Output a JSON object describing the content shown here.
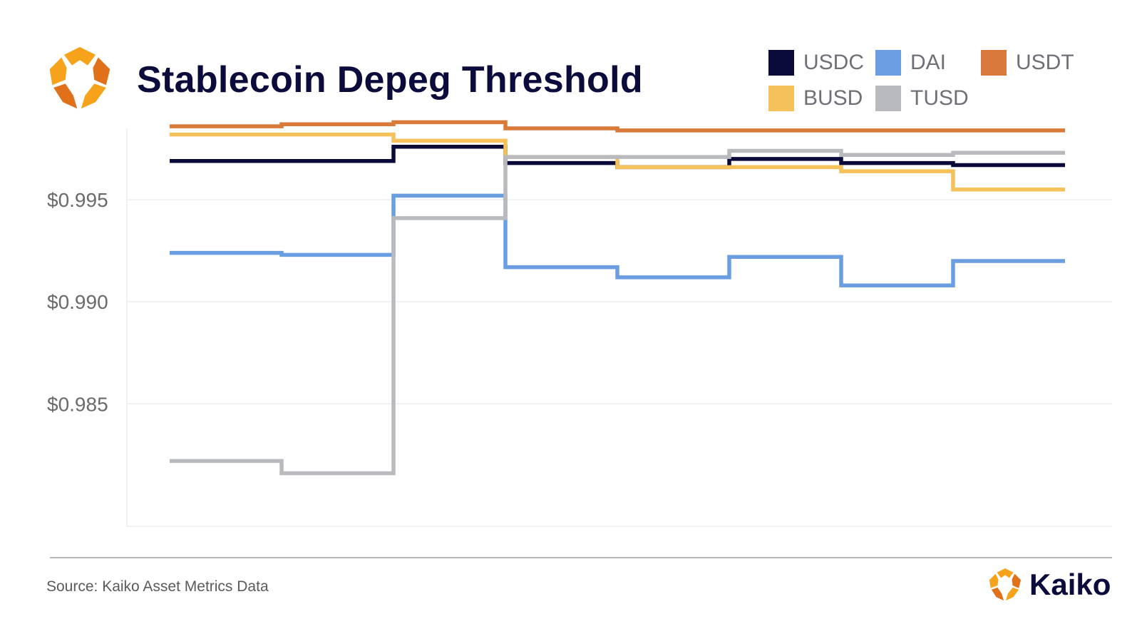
{
  "header": {
    "title": "Stablecoin Depeg Threshold"
  },
  "footer": {
    "source": "Source: Kaiko Asset Metrics Data",
    "brand": "Kaiko"
  },
  "colors": {
    "logo_primary": "#f7a21b",
    "logo_secondary": "#e0701a",
    "title": "#0c0c3c"
  },
  "chart_data": {
    "type": "line",
    "step": true,
    "title": "Stablecoin Depeg Threshold",
    "xlabel": "",
    "ylabel": "",
    "ylim": [
      0.979,
      0.9985
    ],
    "yticks": [
      0.995,
      0.99,
      0.985
    ],
    "ytick_labels": [
      "$0.995",
      "$0.990",
      "$0.985"
    ],
    "grid": true,
    "legend_position": "top-right",
    "series": [
      {
        "name": "USDC",
        "color": "#0a0a3a",
        "values": [
          0.9969,
          0.9969,
          0.9976,
          0.9968,
          0.9966,
          0.997,
          0.9968,
          0.9967
        ]
      },
      {
        "name": "DAI",
        "color": "#6a9ee0",
        "values": [
          0.9924,
          0.9923,
          0.9952,
          0.9917,
          0.9912,
          0.9922,
          0.9908,
          0.992
        ]
      },
      {
        "name": "USDT",
        "color": "#d97a3a",
        "values": [
          0.9986,
          0.9987,
          0.9988,
          0.9985,
          0.9984,
          0.9984,
          0.9984,
          0.9984
        ]
      },
      {
        "name": "BUSD",
        "color": "#f5c15a",
        "values": [
          0.9982,
          0.9982,
          0.9979,
          0.9971,
          0.9966,
          0.9966,
          0.9964,
          0.9955
        ]
      },
      {
        "name": "TUSD",
        "color": "#b9babd",
        "values": [
          0.9822,
          0.9816,
          0.9941,
          0.9971,
          0.9971,
          0.9974,
          0.9972,
          0.9973
        ]
      }
    ]
  }
}
